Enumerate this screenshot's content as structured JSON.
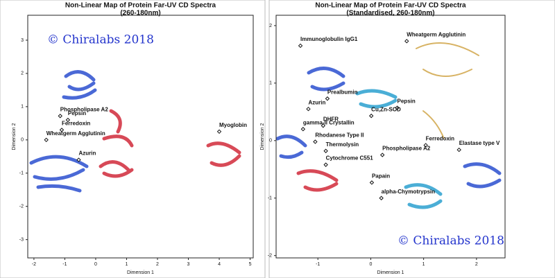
{
  "chart_data": [
    {
      "type": "scatter",
      "title": "Non-Linear Map of Protein Far-UV CD Spectra",
      "subtitle": "(260-180nm)",
      "x_label": "Dimension 1",
      "y_label": "Dimension 2",
      "annotation": "© Chiralabs 2018",
      "xlim": [
        -2.2,
        5.1
      ],
      "ylim": [
        -3.55,
        3.75
      ],
      "xticks": [
        -2,
        -1,
        0,
        1,
        2,
        3,
        4,
        5
      ],
      "yticks": [
        -3,
        -2,
        -1,
        0,
        1,
        2,
        3
      ],
      "color": "#111111",
      "labels": [
        "Phospholipase A2",
        "Pepsin",
        "Ferredoxin",
        "Wheatgerm Agglutinin",
        "Azurin",
        "Myoglobin"
      ],
      "x": [
        -1.15,
        -0.9,
        -1.1,
        -1.6,
        -0.55,
        4.0
      ],
      "y": [
        0.72,
        0.6,
        0.3,
        0.0,
        -0.6,
        0.25
      ]
    },
    {
      "type": "scatter",
      "title": "Non-Linear Map of Protein Far-UV CD Spectra",
      "subtitle": "(Standardised, 260-180nm)",
      "x_label": "Dimension 1",
      "y_label": "Dimension 2",
      "annotation": "© Chiralabs 2018",
      "xlim": [
        -1.79,
        2.54
      ],
      "ylim": [
        -2.04,
        2.18
      ],
      "xticks": [
        -1,
        0,
        1,
        2
      ],
      "yticks": [
        -2,
        -1,
        0,
        1,
        2
      ],
      "color": "#111111",
      "labels": [
        "Immunoglobulin IgG1",
        "Wheatgerm Agglutinin",
        "Prealbumin",
        "Pepsin",
        "Azurin",
        "Cu,Zn-SOD",
        "DHFR",
        "gamma-II Crystallin",
        "Ferredoxin",
        "Elastase type V",
        "Phospholipase A2",
        "Rhodanese Type II",
        "Thermolysin",
        "Cytochrome C551",
        "Papain",
        "alpha-Chymotrypsin"
      ],
      "x": [
        -1.33,
        0.68,
        -0.82,
        0.5,
        -1.18,
        0.01,
        -0.9,
        -1.28,
        1.04,
        1.67,
        0.22,
        -1.05,
        -0.85,
        -0.85,
        0.02,
        0.2
      ],
      "y": [
        1.65,
        1.73,
        0.73,
        0.57,
        0.55,
        0.43,
        0.26,
        0.2,
        -0.08,
        -0.16,
        -0.25,
        -0.02,
        -0.18,
        -0.42,
        -0.73,
        -1.0
      ]
    }
  ]
}
